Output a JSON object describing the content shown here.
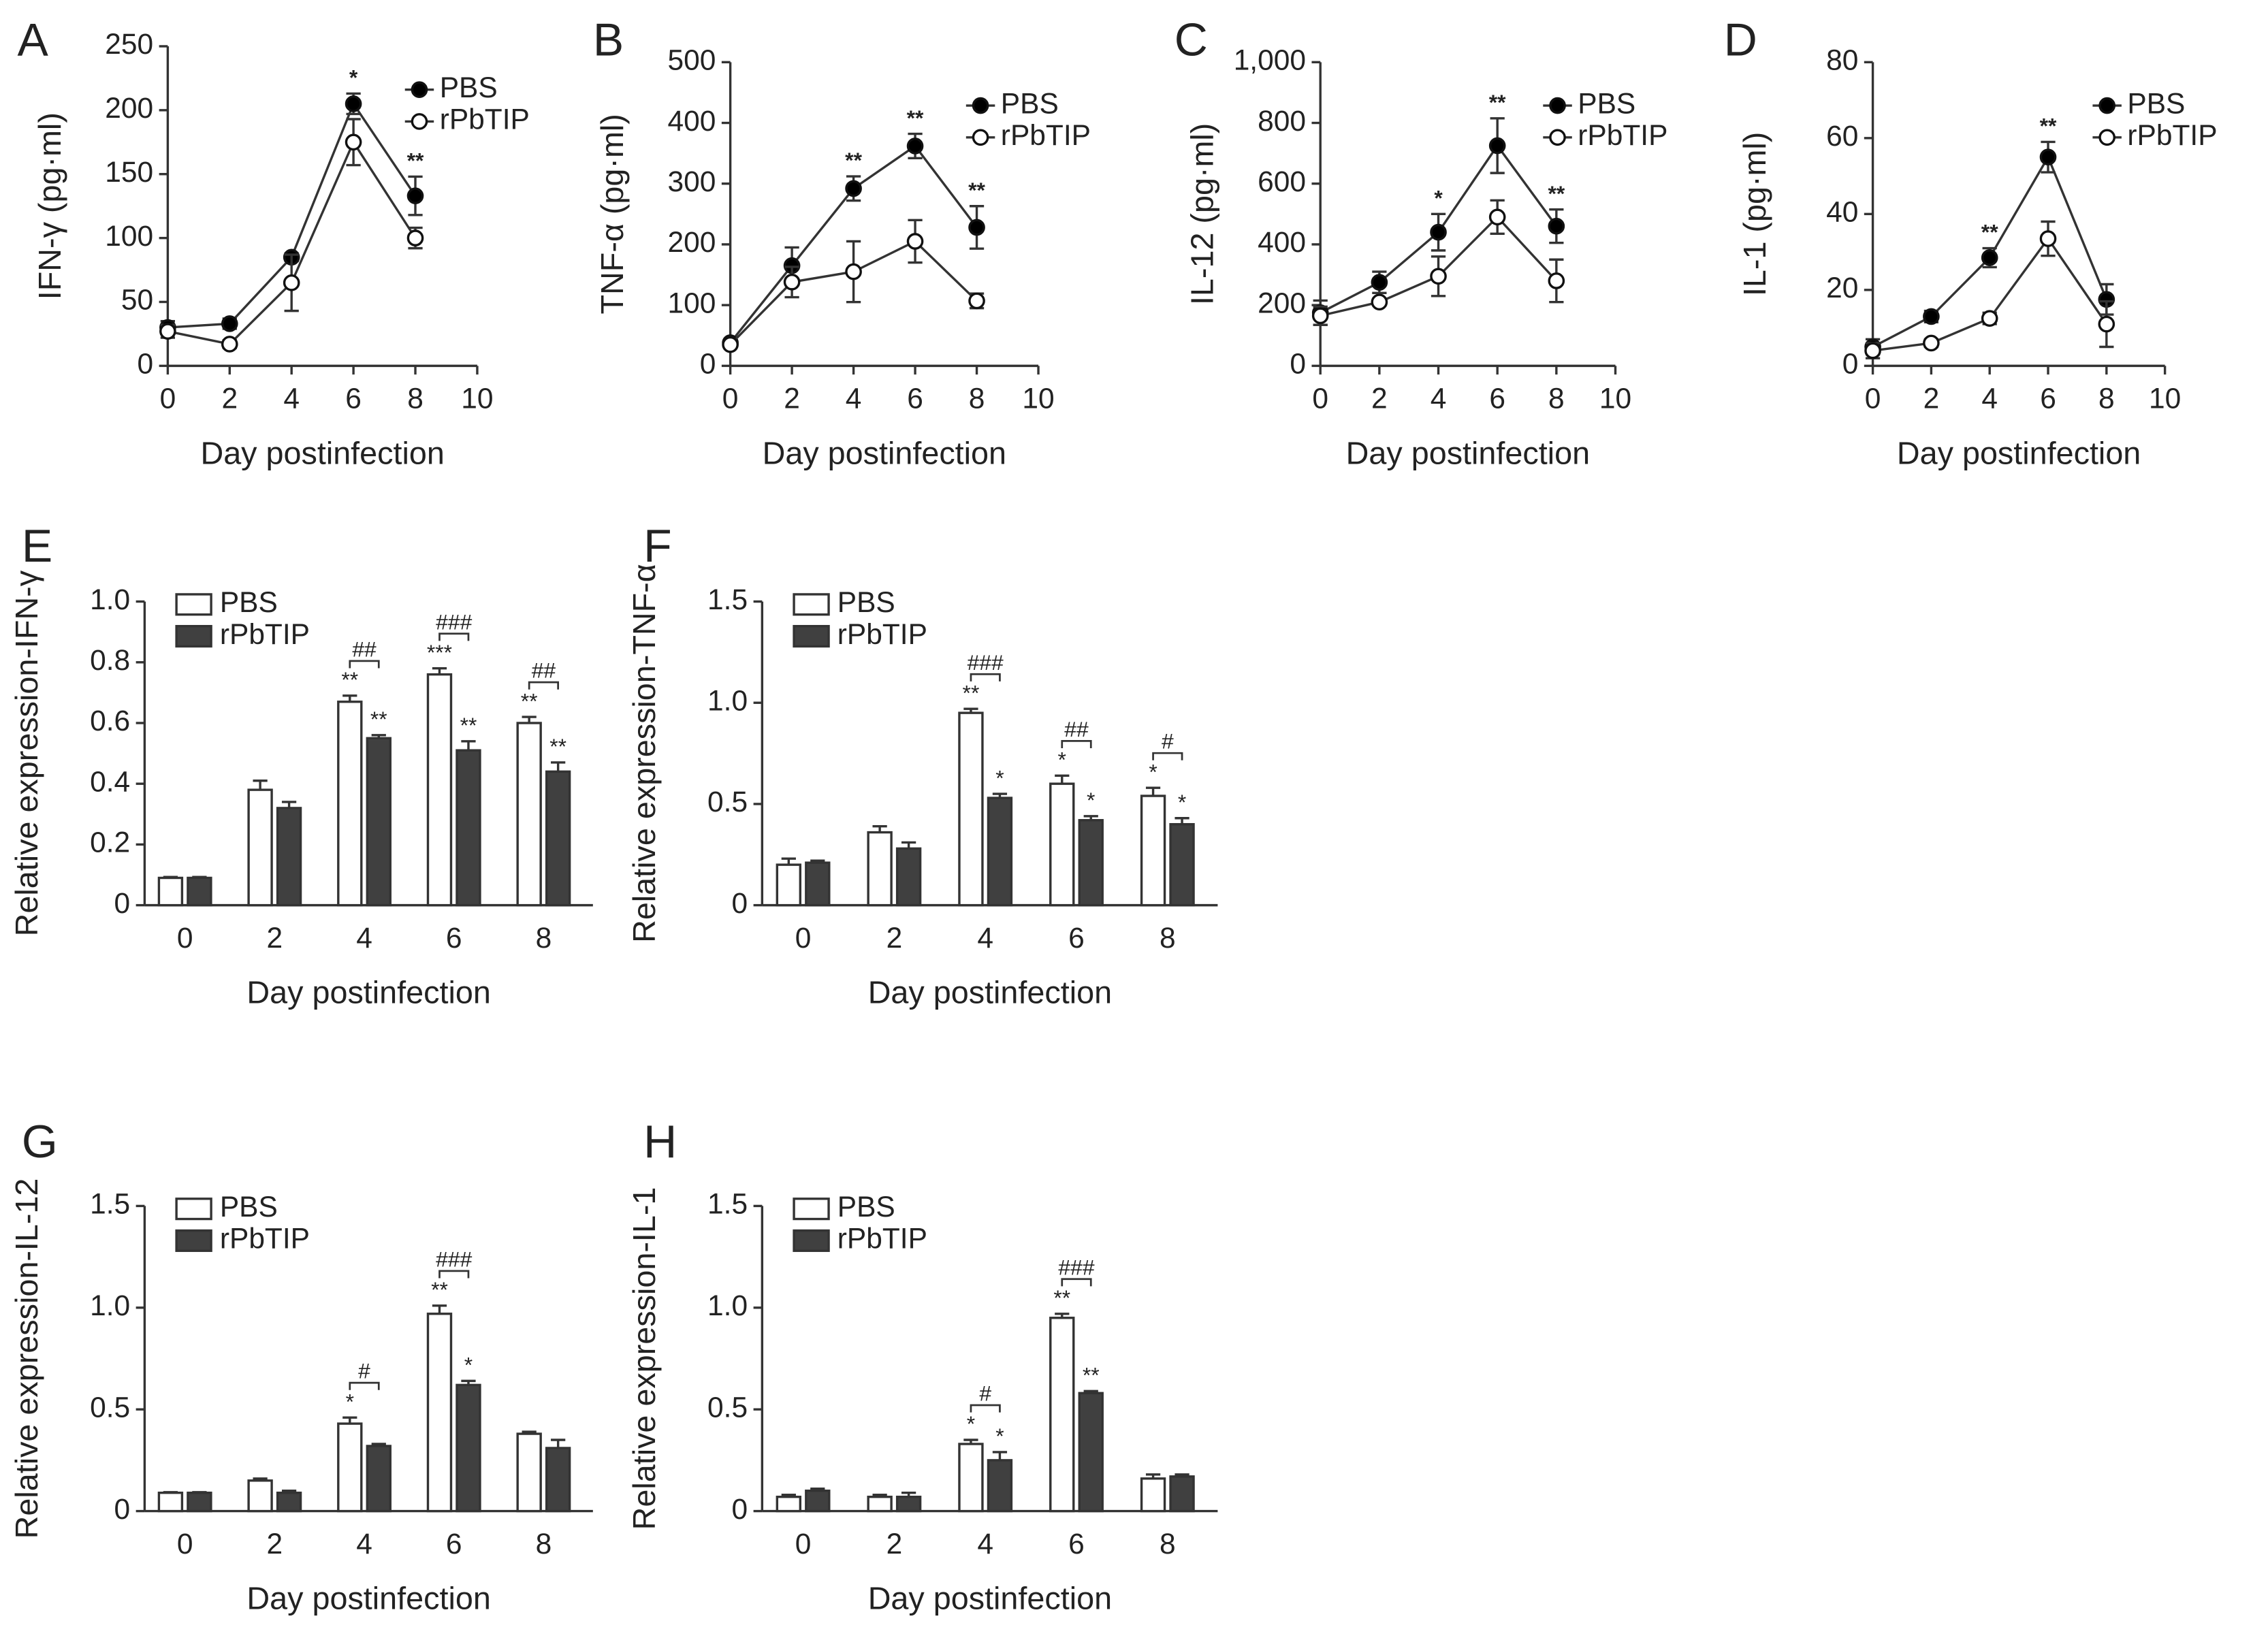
{
  "chart_data": [
    {
      "type": "line",
      "panel": "A",
      "ylabel": "IFN-γ (pg·ml)",
      "xlabel": "Day postinfection",
      "x": [
        0,
        2,
        4,
        6,
        8
      ],
      "xlim": [
        0,
        10
      ],
      "xticks": [
        0,
        2,
        4,
        6,
        8,
        10
      ],
      "ylim": [
        0,
        250
      ],
      "yticks": [
        0,
        50,
        100,
        150,
        200,
        250
      ],
      "legend": "upper right",
      "series": [
        {
          "name": "PBS",
          "color": "#000000",
          "values": [
            30,
            33,
            85,
            205,
            133
          ],
          "errors": [
            5,
            4,
            3,
            8,
            15
          ],
          "significance": [
            null,
            null,
            null,
            "*",
            "**"
          ]
        },
        {
          "name": "rPbTIP",
          "color": "#ffffff",
          "values": [
            27,
            17,
            65,
            175,
            100
          ],
          "errors": [
            5,
            3,
            22,
            18,
            8
          ],
          "significance": [
            null,
            null,
            null,
            null,
            null
          ]
        }
      ]
    },
    {
      "type": "line",
      "panel": "B",
      "ylabel": "TNF-α (pg·ml)",
      "xlabel": "Day postinfection",
      "x": [
        0,
        2,
        4,
        6,
        8
      ],
      "xlim": [
        0,
        10
      ],
      "xticks": [
        0,
        2,
        4,
        6,
        8,
        10
      ],
      "ylim": [
        0,
        500
      ],
      "yticks": [
        0,
        100,
        200,
        300,
        400,
        500
      ],
      "legend": "upper right",
      "series": [
        {
          "name": "PBS",
          "color": "#000000",
          "values": [
            38,
            165,
            292,
            362,
            228
          ],
          "errors": [
            5,
            30,
            20,
            20,
            35
          ],
          "significance": [
            null,
            null,
            "**",
            "**",
            "**"
          ]
        },
        {
          "name": "rPbTIP",
          "color": "#ffffff",
          "values": [
            35,
            138,
            155,
            205,
            107
          ],
          "errors": [
            5,
            25,
            50,
            35,
            12
          ],
          "significance": [
            null,
            null,
            null,
            null,
            null
          ]
        }
      ]
    },
    {
      "type": "line",
      "panel": "C",
      "ylabel": "IL-12 (pg·ml)",
      "xlabel": "Day postinfection",
      "x": [
        0,
        2,
        4,
        6,
        8
      ],
      "xlim": [
        0,
        10
      ],
      "xticks": [
        0,
        2,
        4,
        6,
        8,
        10
      ],
      "ylim": [
        0,
        1000
      ],
      "yticks": [
        0,
        200,
        400,
        600,
        800,
        {
          "value": 1000,
          "label": "1,000"
        }
      ],
      "legend": "upper right",
      "series": [
        {
          "name": "PBS",
          "color": "#000000",
          "values": [
            175,
            275,
            440,
            725,
            460
          ],
          "errors": [
            40,
            35,
            60,
            90,
            55
          ],
          "significance": [
            null,
            null,
            "*",
            "**",
            "**"
          ]
        },
        {
          "name": "rPbTIP",
          "color": "#ffffff",
          "values": [
            165,
            210,
            295,
            490,
            280
          ],
          "errors": [
            30,
            10,
            65,
            55,
            70
          ],
          "significance": [
            null,
            null,
            null,
            null,
            null
          ]
        }
      ]
    },
    {
      "type": "line",
      "panel": "D",
      "ylabel": "IL-1 (pg·ml)",
      "xlabel": "Day postinfection",
      "x": [
        0,
        2,
        4,
        6,
        8
      ],
      "xlim": [
        0,
        10
      ],
      "xticks": [
        0,
        2,
        4,
        6,
        8,
        10
      ],
      "ylim": [
        0,
        80
      ],
      "yticks": [
        0,
        20,
        40,
        60,
        80
      ],
      "legend": "upper right",
      "series": [
        {
          "name": "PBS",
          "color": "#000000",
          "values": [
            5,
            13,
            28.5,
            55,
            17.5
          ],
          "errors": [
            2,
            1.5,
            2.5,
            4,
            4
          ],
          "significance": [
            null,
            null,
            "**",
            "**",
            null
          ]
        },
        {
          "name": "rPbTIP",
          "color": "#ffffff",
          "values": [
            4,
            6,
            12.5,
            33.5,
            11
          ],
          "errors": [
            2,
            1,
            1.5,
            4.5,
            6
          ],
          "significance": [
            null,
            null,
            null,
            null,
            null
          ]
        }
      ]
    },
    {
      "type": "bar",
      "panel": "E",
      "ylabel": "Relative expression-IFN-γ",
      "xlabel": "Day postinfection",
      "categories": [
        "0",
        "2",
        "4",
        "6",
        "8"
      ],
      "ylim": [
        0,
        1
      ],
      "yticks": [
        0,
        0.2,
        0.4,
        0.6,
        0.8,
        {
          "value": 1,
          "label": "1.0"
        }
      ],
      "legend": "upper left",
      "comparisons": [
        null,
        null,
        "##",
        "###",
        "##"
      ],
      "series": [
        {
          "name": "PBS",
          "color": "#ffffff",
          "values": [
            0.09,
            0.38,
            0.67,
            0.76,
            0.6
          ],
          "errors": [
            0.003,
            0.03,
            0.02,
            0.02,
            0.02
          ],
          "significance": [
            null,
            null,
            "**",
            "***",
            "**"
          ]
        },
        {
          "name": "rPbTIP",
          "color": "#404040",
          "values": [
            0.09,
            0.32,
            0.55,
            0.51,
            0.44
          ],
          "errors": [
            0.003,
            0.02,
            0.01,
            0.03,
            0.03
          ],
          "significance": [
            null,
            null,
            "**",
            "**",
            "**"
          ]
        }
      ]
    },
    {
      "type": "bar",
      "panel": "F",
      "ylabel": "Relative expression-TNF-α",
      "xlabel": "Day postinfection",
      "categories": [
        "0",
        "2",
        "4",
        "6",
        "8"
      ],
      "ylim": [
        0,
        1.5
      ],
      "yticks": [
        0,
        0.5,
        {
          "value": 1,
          "label": "1.0"
        },
        1.5
      ],
      "legend": "upper left",
      "comparisons": [
        null,
        null,
        "###",
        "##",
        "#"
      ],
      "series": [
        {
          "name": "PBS",
          "color": "#ffffff",
          "values": [
            0.2,
            0.36,
            0.95,
            0.6,
            0.54
          ],
          "errors": [
            0.03,
            0.03,
            0.02,
            0.04,
            0.04
          ],
          "significance": [
            null,
            null,
            "**",
            "*",
            "*"
          ]
        },
        {
          "name": "rPbTIP",
          "color": "#404040",
          "values": [
            0.21,
            0.28,
            0.53,
            0.42,
            0.4
          ],
          "errors": [
            0.01,
            0.03,
            0.02,
            0.02,
            0.03
          ],
          "significance": [
            null,
            null,
            "*",
            "*",
            "*"
          ]
        }
      ]
    },
    {
      "type": "bar",
      "panel": "G",
      "ylabel": "Relative expression-IL-12",
      "xlabel": "Day postinfection",
      "categories": [
        "0",
        "2",
        "4",
        "6",
        "8"
      ],
      "ylim": [
        0,
        1.5
      ],
      "yticks": [
        0,
        0.5,
        {
          "value": 1,
          "label": "1.0"
        },
        1.5
      ],
      "legend": "upper left",
      "comparisons": [
        null,
        null,
        "#",
        "###",
        null
      ],
      "series": [
        {
          "name": "PBS",
          "color": "#ffffff",
          "values": [
            0.09,
            0.15,
            0.43,
            0.97,
            0.38
          ],
          "errors": [
            0.003,
            0.01,
            0.03,
            0.04,
            0.01
          ],
          "significance": [
            null,
            null,
            "*",
            "**",
            null
          ]
        },
        {
          "name": "rPbTIP",
          "color": "#404040",
          "values": [
            0.09,
            0.09,
            0.32,
            0.62,
            0.31
          ],
          "errors": [
            0.003,
            0.01,
            0.01,
            0.02,
            0.04
          ],
          "significance": [
            null,
            null,
            null,
            "*",
            null
          ]
        }
      ]
    },
    {
      "type": "bar",
      "panel": "H",
      "ylabel": "Relative expression-IL-1",
      "xlabel": "Day postinfection",
      "categories": [
        "0",
        "2",
        "4",
        "6",
        "8"
      ],
      "ylim": [
        0,
        1.5
      ],
      "yticks": [
        0,
        0.5,
        {
          "value": 1,
          "label": "1.0"
        },
        1.5
      ],
      "legend": "upper left",
      "comparisons": [
        null,
        null,
        "#",
        "###",
        null
      ],
      "series": [
        {
          "name": "PBS",
          "color": "#ffffff",
          "values": [
            0.07,
            0.07,
            0.33,
            0.95,
            0.16
          ],
          "errors": [
            0.01,
            0.01,
            0.02,
            0.02,
            0.02
          ],
          "significance": [
            null,
            null,
            "*",
            "**",
            null
          ]
        },
        {
          "name": "rPbTIP",
          "color": "#404040",
          "values": [
            0.1,
            0.07,
            0.25,
            0.58,
            0.17
          ],
          "errors": [
            0.01,
            0.02,
            0.04,
            0.01,
            0.01
          ],
          "significance": [
            null,
            null,
            "*",
            "**",
            null
          ]
        }
      ]
    }
  ]
}
